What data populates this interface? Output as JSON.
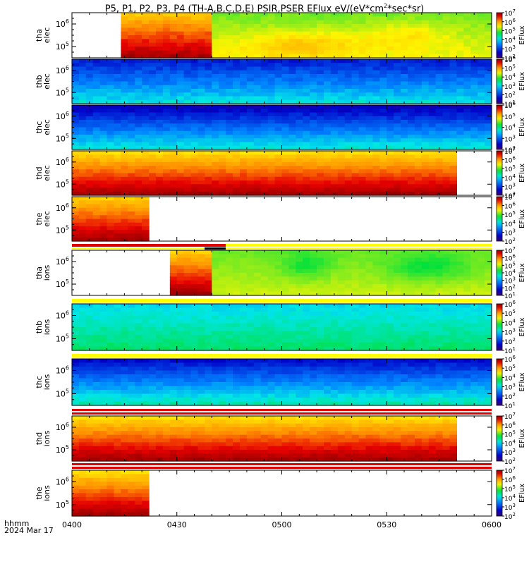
{
  "title": {
    "prefix": "P5, P1, P2, P3, P4 (TH-A,B,C,D,E) PSIR,PSER EFlux eV/(eV*cm",
    "sup": "2",
    "suffix": "*sec*sr)"
  },
  "bottom_left": {
    "l1": "hhmm",
    "l2": "2024 Mar 17"
  },
  "chart_data": {
    "type": "heatmap",
    "x_ticks": [
      "0400",
      "0430",
      "0500",
      "0530",
      "0600"
    ],
    "colorbar_label": "EFlux",
    "panels": [
      {
        "id": "tha_elec",
        "ylabel": [
          "tha",
          "elec"
        ],
        "yticks": [
          "10^6",
          "10^5"
        ],
        "cbar": {
          "min": 2,
          "max": 7
        }
      },
      {
        "id": "thb_elec",
        "ylabel": [
          "thb",
          "elec"
        ],
        "yticks": [
          "10^6",
          "10^5"
        ],
        "cbar": {
          "min": 1,
          "max": 6
        }
      },
      {
        "id": "thc_elec",
        "ylabel": [
          "thc",
          "elec"
        ],
        "yticks": [
          "10^6",
          "10^5"
        ],
        "cbar": {
          "min": 2,
          "max": 6
        }
      },
      {
        "id": "thd_elec",
        "ylabel": [
          "thd",
          "elec"
        ],
        "yticks": [
          "10^6",
          "10^5"
        ],
        "cbar": {
          "min": 2,
          "max": 7
        }
      },
      {
        "id": "the_elec",
        "ylabel": [
          "the",
          "elec"
        ],
        "yticks": [
          "10^6",
          "10^5"
        ],
        "cbar": {
          "min": 2,
          "max": 7
        }
      },
      {
        "id": "tha_ions",
        "ylabel": [
          "tha",
          "ions"
        ],
        "yticks": [
          "10^6",
          "10^5"
        ],
        "cbar": {
          "min": 1,
          "max": 7
        }
      },
      {
        "id": "thb_ions",
        "ylabel": [
          "thb",
          "ions"
        ],
        "yticks": [
          "10^6",
          "10^5"
        ],
        "cbar": {
          "min": 1,
          "max": 6
        }
      },
      {
        "id": "thc_ions",
        "ylabel": [
          "thc",
          "ions"
        ],
        "yticks": [
          "10^6",
          "10^5"
        ],
        "cbar": {
          "min": 1,
          "max": 6
        }
      },
      {
        "id": "thd_ions",
        "ylabel": [
          "thd",
          "ions"
        ],
        "yticks": [
          "10^6",
          "10^5"
        ],
        "cbar": {
          "min": 2,
          "max": 7
        }
      },
      {
        "id": "the_ions",
        "ylabel": [
          "the",
          "ions"
        ],
        "yticks": [
          "10^6",
          "10^5"
        ],
        "cbar": {
          "min": 2,
          "max": 7
        }
      }
    ]
  }
}
